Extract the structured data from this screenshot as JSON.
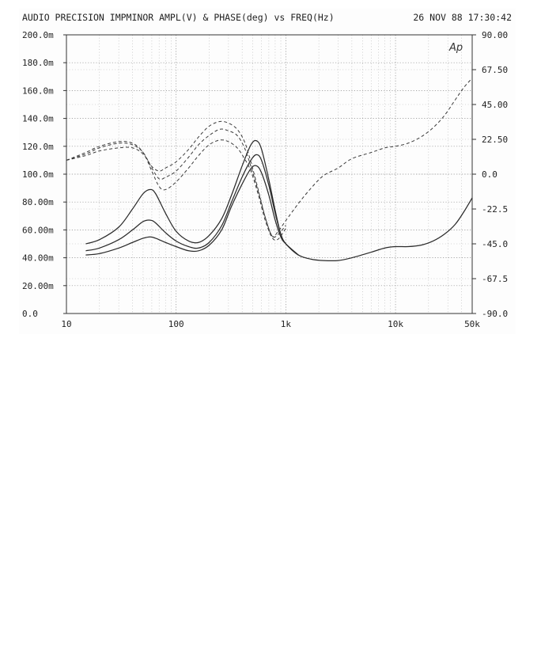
{
  "header": {
    "title": "AUDIO PRECISION IMPMINOR AMPL(V) & PHASE(deg) vs FREQ(Hz)",
    "timestamp": "26 NOV 88 17:30:42",
    "logo": "Ap"
  },
  "chart_data": {
    "type": "line",
    "title": "AUDIO PRECISION IMPMINOR AMPL(V) & PHASE(deg) vs FREQ(Hz)",
    "xlabel": "FREQ(Hz)",
    "x_scale": "log",
    "xlim": [
      10,
      50000
    ],
    "x_ticks": [
      "10",
      "100",
      "1k",
      "10k",
      "50k"
    ],
    "ylim_left": [
      0,
      200
    ],
    "y_ticks_left": [
      "200.0m",
      "180.0m",
      "160.0m",
      "140.0m",
      "120.0m",
      "100.0m",
      "80.00m",
      "60.00m",
      "40.00m",
      "20.00m",
      "0.0"
    ],
    "ylim_right": [
      -90,
      90
    ],
    "y_ticks_right": [
      "90.00",
      "67.50",
      "45.00",
      "22.50",
      "0.0",
      "-22.5",
      "-45.0",
      "-67.5",
      "-90.0"
    ],
    "grid": true,
    "series": [
      {
        "axis": "left",
        "style": "solid",
        "points": [
          [
            15,
            50
          ],
          [
            20,
            53
          ],
          [
            30,
            62
          ],
          [
            40,
            75
          ],
          [
            50,
            86
          ],
          [
            58,
            89
          ],
          [
            65,
            86
          ],
          [
            80,
            72
          ],
          [
            100,
            59
          ],
          [
            130,
            52
          ],
          [
            160,
            51
          ],
          [
            200,
            56
          ],
          [
            260,
            68
          ],
          [
            320,
            85
          ],
          [
            400,
            106
          ],
          [
            480,
            121
          ],
          [
            540,
            124
          ],
          [
            600,
            118
          ],
          [
            700,
            96
          ],
          [
            800,
            74
          ],
          [
            900,
            57
          ],
          [
            1000,
            50
          ],
          [
            1300,
            42
          ],
          [
            1700,
            39
          ],
          [
            2200,
            38
          ],
          [
            3000,
            38
          ],
          [
            4000,
            40
          ],
          [
            6000,
            44
          ],
          [
            8000,
            47
          ],
          [
            10000,
            48
          ],
          [
            13000,
            48
          ],
          [
            17000,
            49
          ],
          [
            22000,
            52
          ],
          [
            28000,
            57
          ],
          [
            35000,
            64
          ],
          [
            42000,
            73
          ],
          [
            50000,
            83
          ]
        ]
      },
      {
        "axis": "left",
        "style": "solid",
        "points": [
          [
            15,
            45
          ],
          [
            20,
            47
          ],
          [
            30,
            53
          ],
          [
            40,
            60
          ],
          [
            50,
            66
          ],
          [
            58,
            67
          ],
          [
            65,
            65
          ],
          [
            80,
            58
          ],
          [
            100,
            52
          ],
          [
            130,
            48
          ],
          [
            160,
            47
          ],
          [
            200,
            51
          ],
          [
            260,
            63
          ],
          [
            320,
            80
          ],
          [
            400,
            98
          ],
          [
            480,
            110
          ],
          [
            540,
            114
          ],
          [
            600,
            110
          ],
          [
            700,
            92
          ],
          [
            800,
            72
          ],
          [
            900,
            57
          ],
          [
            1000,
            50
          ],
          [
            1300,
            42
          ]
        ]
      },
      {
        "axis": "left",
        "style": "solid",
        "points": [
          [
            15,
            42
          ],
          [
            20,
            43
          ],
          [
            30,
            47
          ],
          [
            40,
            51
          ],
          [
            50,
            54
          ],
          [
            58,
            55
          ],
          [
            65,
            54
          ],
          [
            80,
            51
          ],
          [
            100,
            48
          ],
          [
            130,
            45
          ],
          [
            160,
            45
          ],
          [
            200,
            49
          ],
          [
            260,
            60
          ],
          [
            320,
            77
          ],
          [
            400,
            93
          ],
          [
            480,
            104
          ],
          [
            540,
            106
          ],
          [
            600,
            101
          ],
          [
            700,
            85
          ],
          [
            800,
            67
          ],
          [
            900,
            55
          ],
          [
            1000,
            50
          ],
          [
            1300,
            42
          ]
        ]
      },
      {
        "axis": "right",
        "style": "dashed",
        "points": [
          [
            10,
            9
          ],
          [
            15,
            12
          ],
          [
            20,
            15
          ],
          [
            30,
            17
          ],
          [
            40,
            17
          ],
          [
            50,
            13
          ],
          [
            60,
            5
          ],
          [
            70,
            2
          ],
          [
            80,
            4
          ],
          [
            100,
            8
          ],
          [
            130,
            16
          ],
          [
            160,
            24
          ],
          [
            200,
            31
          ],
          [
            250,
            34
          ],
          [
            300,
            33
          ],
          [
            360,
            29
          ],
          [
            420,
            21
          ],
          [
            480,
            8
          ],
          [
            560,
            -10
          ],
          [
            650,
            -28
          ],
          [
            750,
            -40
          ],
          [
            850,
            -37
          ],
          [
            1000,
            -30
          ],
          [
            1300,
            -19
          ],
          [
            1700,
            -9
          ],
          [
            2200,
            -1
          ],
          [
            3000,
            4
          ],
          [
            4000,
            10
          ],
          [
            6000,
            14
          ],
          [
            8000,
            17
          ],
          [
            10000,
            18
          ],
          [
            13000,
            20
          ],
          [
            17000,
            24
          ],
          [
            22000,
            30
          ],
          [
            28000,
            38
          ],
          [
            35000,
            48
          ],
          [
            42000,
            56
          ],
          [
            50000,
            62
          ]
        ]
      },
      {
        "axis": "right",
        "style": "dashed",
        "points": [
          [
            10,
            9
          ],
          [
            15,
            13
          ],
          [
            20,
            17
          ],
          [
            30,
            20
          ],
          [
            40,
            19
          ],
          [
            50,
            14
          ],
          [
            60,
            4
          ],
          [
            70,
            -3
          ],
          [
            80,
            -2
          ],
          [
            100,
            2
          ],
          [
            130,
            11
          ],
          [
            160,
            19
          ],
          [
            200,
            25
          ],
          [
            250,
            29
          ],
          [
            300,
            28
          ],
          [
            360,
            25
          ],
          [
            420,
            17
          ],
          [
            480,
            5
          ],
          [
            560,
            -11
          ],
          [
            650,
            -28
          ],
          [
            750,
            -40
          ],
          [
            850,
            -39
          ],
          [
            1000,
            -33
          ]
        ]
      },
      {
        "axis": "right",
        "style": "dashed",
        "points": [
          [
            10,
            9
          ],
          [
            15,
            14
          ],
          [
            20,
            18
          ],
          [
            30,
            21
          ],
          [
            40,
            20
          ],
          [
            50,
            14
          ],
          [
            60,
            2
          ],
          [
            70,
            -8
          ],
          [
            80,
            -10
          ],
          [
            100,
            -5
          ],
          [
            130,
            4
          ],
          [
            160,
            12
          ],
          [
            200,
            19
          ],
          [
            250,
            22
          ],
          [
            300,
            21
          ],
          [
            360,
            17
          ],
          [
            420,
            10
          ],
          [
            480,
            2
          ],
          [
            560,
            -13
          ],
          [
            650,
            -30
          ],
          [
            750,
            -41
          ],
          [
            850,
            -42
          ],
          [
            1000,
            -35
          ]
        ]
      }
    ]
  }
}
